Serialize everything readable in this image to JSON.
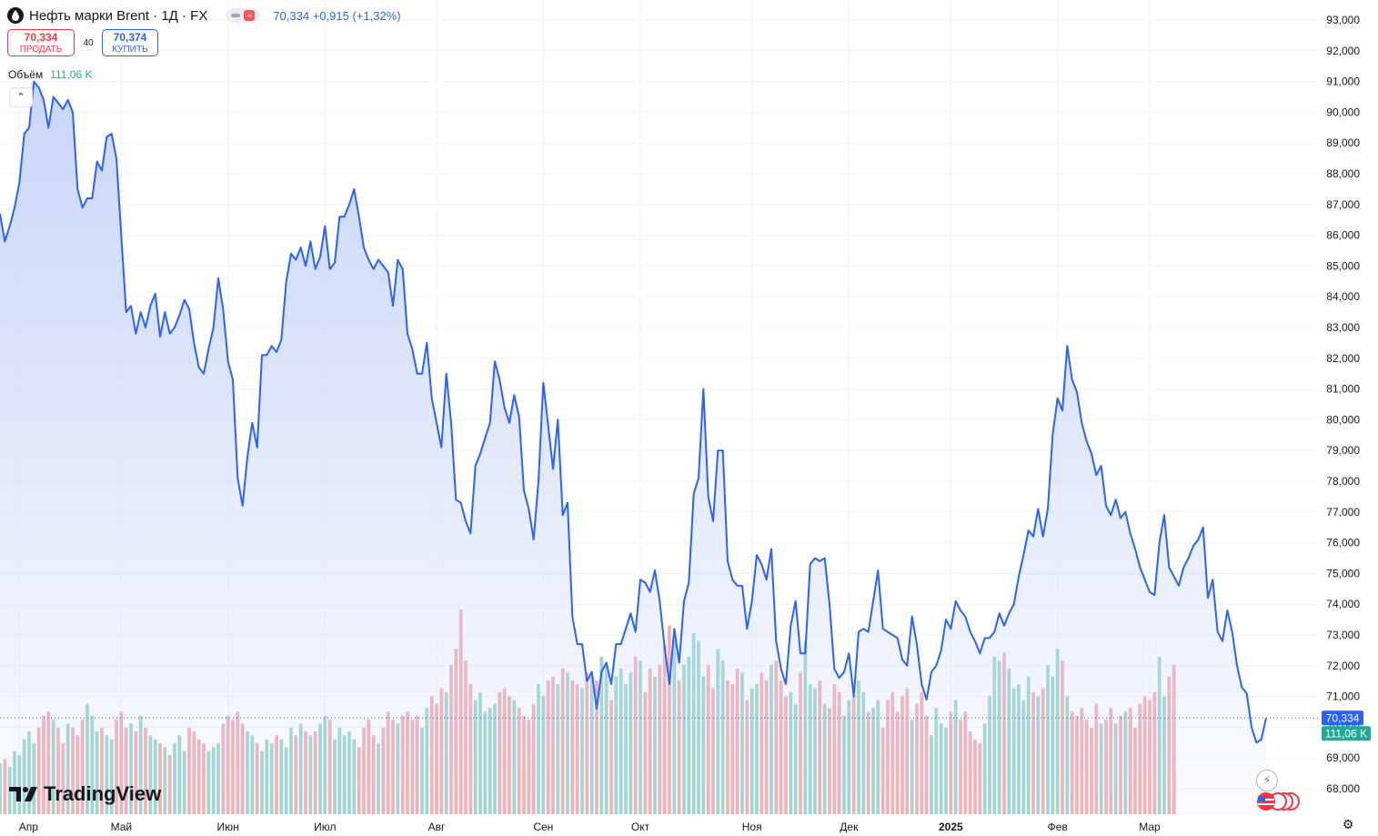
{
  "header": {
    "title": "Нефть марки Brent · 1Д · FX",
    "last_price": "70,334",
    "change": "+0,915",
    "change_pct": "(+1,32%)"
  },
  "trade": {
    "sell_price": "70,334",
    "sell_label": "ПРОДАТЬ",
    "spread": "40",
    "buy_price": "70,374",
    "buy_label": "КУПИТЬ"
  },
  "volume_legend": {
    "label": "Объём",
    "value": "111,06 K"
  },
  "logo_text": "TradingView",
  "price_tag": "70,334",
  "volume_tag": "111,06 K",
  "colors": {
    "line": "#2962ff",
    "area_top": "#c7d4f9",
    "vol_up": "#94d1c4",
    "vol_down": "#f4a6a9",
    "price_tag": "#2962ff",
    "volume_tag": "#22ab94"
  },
  "icons": [
    "oil-drop-icon",
    "chevron-up-icon",
    "lightning-icon",
    "us-flag-icon",
    "gear-icon",
    "tradingview-logo-icon"
  ],
  "chart_data": {
    "type": "area",
    "title": "Нефть марки Brent · 1Д · FX",
    "ylim": [
      67000,
      93500
    ],
    "y_ticks": [
      68000,
      69000,
      70000,
      71000,
      72000,
      73000,
      74000,
      75000,
      76000,
      77000,
      78000,
      79000,
      80000,
      81000,
      82000,
      83000,
      84000,
      85000,
      86000,
      87000,
      88000,
      89000,
      90000,
      91000,
      92000,
      93000
    ],
    "y_tick_labels": [
      "68,000",
      "69,000",
      "70,000",
      "71,000",
      "72,000",
      "73,000",
      "74,000",
      "75,000",
      "76,000",
      "77,000",
      "78,000",
      "79,000",
      "80,000",
      "81,000",
      "82,000",
      "83,000",
      "84,000",
      "85,000",
      "86,000",
      "87,000",
      "88,000",
      "89,000",
      "90,000",
      "91,000",
      "92,000",
      "93,000"
    ],
    "x_ticks": [
      {
        "i": 4,
        "label": "Апр",
        "bold": false
      },
      {
        "i": 25,
        "label": "Май",
        "bold": false
      },
      {
        "i": 47,
        "label": "Июн",
        "bold": false
      },
      {
        "i": 67,
        "label": "Июл",
        "bold": false
      },
      {
        "i": 90,
        "label": "Авг",
        "bold": false
      },
      {
        "i": 112,
        "label": "Сен",
        "bold": false
      },
      {
        "i": 132,
        "label": "Окт",
        "bold": false
      },
      {
        "i": 155,
        "label": "Ноя",
        "bold": false
      },
      {
        "i": 175,
        "label": "Дек",
        "bold": false
      },
      {
        "i": 196,
        "label": "2025",
        "bold": true
      },
      {
        "i": 218,
        "label": "Фев",
        "bold": false
      },
      {
        "i": 237,
        "label": "Мар",
        "bold": false
      }
    ],
    "series": [
      {
        "values": [
          86700,
          85800,
          86300,
          86900,
          87700,
          89300,
          89500,
          91000,
          90800,
          90400,
          89500,
          90500,
          90300,
          90100,
          90400,
          90000,
          87500,
          86900,
          87200,
          87200,
          88400,
          88100,
          89200,
          89300,
          88500,
          86000,
          83500,
          83700,
          82800,
          83500,
          83000,
          83700,
          84100,
          82700,
          83500,
          82800,
          83000,
          83400,
          83900,
          83600,
          82500,
          81700,
          81500,
          82300,
          83000,
          84600,
          83600,
          81900,
          81300,
          78100,
          77200,
          78800,
          79900,
          79100,
          82100,
          82100,
          82400,
          82200,
          82600,
          84500,
          85400,
          85200,
          85600,
          85000,
          85800,
          84900,
          85300,
          86300,
          84900,
          85100,
          86600,
          86600,
          87000,
          87500,
          86600,
          85600,
          85200,
          84900,
          85200,
          85000,
          84800,
          83700,
          85200,
          84900,
          82800,
          82300,
          81500,
          81500,
          82500,
          80700,
          79900,
          79100,
          81500,
          79900,
          77400,
          77300,
          76700,
          76300,
          78500,
          78900,
          79400,
          79900,
          81900,
          81300,
          80400,
          79900,
          80800,
          80100,
          77700,
          77100,
          76100,
          78000,
          81200,
          79800,
          78400,
          80000,
          76900,
          77300,
          73600,
          72700,
          72700,
          71500,
          71800,
          70600,
          71800,
          72100,
          71400,
          72700,
          72700,
          73200,
          73700,
          73100,
          74800,
          74700,
          74400,
          75100,
          74100,
          72600,
          71400,
          73200,
          72100,
          74100,
          74700,
          77600,
          78100,
          81000,
          77500,
          76700,
          79000,
          79000,
          75400,
          74800,
          74600,
          74600,
          73200,
          74100,
          75600,
          75300,
          74800,
          75800,
          72800,
          71900,
          71400,
          73300,
          74100,
          72400,
          72400,
          75300,
          75500,
          75400,
          75500,
          74000,
          71900,
          71600,
          71800,
          72400,
          71000,
          73100,
          73200,
          73100,
          74100,
          75100,
          73200,
          73100,
          73000,
          72900,
          72200,
          72000,
          73600,
          72700,
          71400,
          70900,
          71800,
          72000,
          72500,
          73500,
          73200,
          74100,
          73800,
          73600,
          73100,
          72800,
          72400,
          72900,
          72900,
          73100,
          73700,
          73300,
          73700,
          74000,
          74900,
          75600,
          76400,
          76200,
          77100,
          76200,
          77100,
          79500,
          80700,
          80300,
          82400,
          81300,
          80900,
          79900,
          79300,
          78900,
          78200,
          78500,
          77200,
          76900,
          77400,
          76800,
          77000,
          76300,
          75800,
          75200,
          74800,
          74400,
          74300,
          76000,
          76900,
          75200,
          74900,
          74600,
          75200,
          75500,
          75900,
          76100,
          76500,
          74200,
          74800,
          73100,
          72800,
          73800,
          73100,
          72000,
          71300,
          71100,
          70000,
          69500,
          69600,
          70300
        ]
      }
    ],
    "volume": {
      "values": [
        13,
        14,
        12,
        16,
        15,
        19,
        21,
        18,
        22,
        25,
        26,
        24,
        22,
        18,
        23,
        22,
        20,
        24,
        28,
        25,
        21,
        22,
        20,
        19,
        24,
        26,
        22,
        23,
        21,
        25,
        22,
        20,
        19,
        18,
        17,
        15,
        18,
        20,
        16,
        22,
        21,
        19,
        18,
        16,
        17,
        18,
        23,
        25,
        24,
        26,
        23,
        21,
        20,
        18,
        16,
        19,
        18,
        20,
        19,
        17,
        22,
        20,
        23,
        21,
        20,
        21,
        23,
        25,
        24,
        19,
        22,
        20,
        21,
        19,
        17,
        22,
        24,
        20,
        18,
        22,
        26,
        24,
        23,
        25,
        26,
        24,
        25,
        22,
        27,
        30,
        28,
        32,
        31,
        38,
        42,
        52,
        39,
        33,
        29,
        31,
        26,
        27,
        28,
        31,
        32,
        30,
        29,
        27,
        25,
        24,
        28,
        33,
        30,
        34,
        35,
        33,
        37,
        36,
        34,
        33,
        32,
        36,
        35,
        34,
        40,
        38,
        29,
        35,
        37,
        33,
        36,
        40,
        39,
        31,
        37,
        35,
        38,
        43,
        48,
        44,
        34,
        38,
        40,
        46,
        44,
        35,
        38,
        32,
        42,
        39,
        34,
        33,
        37,
        36,
        29,
        32,
        33,
        36,
        34,
        38,
        39,
        34,
        30,
        31,
        28,
        36,
        44,
        33,
        32,
        34,
        28,
        27,
        33,
        31,
        25,
        29,
        30,
        34,
        31,
        26,
        27,
        29,
        22,
        29,
        31,
        26,
        30,
        32,
        24,
        28,
        31,
        25,
        20,
        27,
        23,
        22,
        26,
        29,
        24,
        26,
        21,
        19,
        18,
        23,
        30,
        40,
        39,
        41,
        37,
        32,
        33,
        29,
        35,
        31,
        30,
        32,
        38,
        35,
        42,
        39,
        30,
        26,
        25,
        27,
        24,
        22,
        28,
        23,
        24,
        27,
        23,
        25,
        26,
        27,
        22,
        28,
        30,
        29,
        31,
        40,
        30,
        35,
        38
      ]
    }
  }
}
